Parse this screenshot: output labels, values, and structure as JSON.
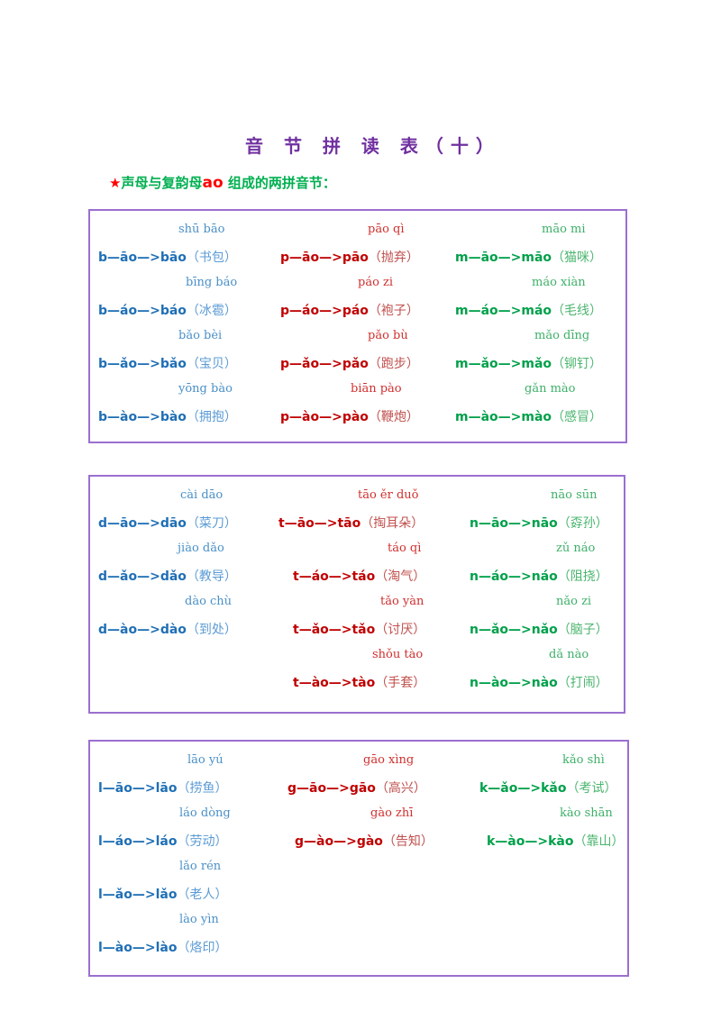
{
  "header": {
    "title": "音 节 拼 读 表（十）",
    "subtitle_star": "★",
    "subtitle_pre": "声母与复韵母",
    "subtitle_ao": "ao",
    "subtitle_post": " 组成的两拼音节："
  },
  "colors": {
    "title": "#7030a0",
    "border": "#9b6fd0",
    "blue": "#1f6fb5",
    "red": "#c00000",
    "green": "#00a04a"
  },
  "boxes": [
    {
      "columns": [
        {
          "color": "blue",
          "items": [
            {
              "pinyin": "shū bāo",
              "formula": "b—āo—>bāo",
              "word": "（书包）"
            },
            {
              "pinyin": "bīng báo",
              "formula": "b—áo—>báo",
              "word": "（冰雹）"
            },
            {
              "pinyin": "bǎo bèi",
              "formula": "b—ǎo—>bǎo",
              "word": "（宝贝）"
            },
            {
              "pinyin": "yōng bào",
              "formula": "b—ào—>bào",
              "word": "（拥抱）"
            }
          ]
        },
        {
          "color": "red",
          "items": [
            {
              "pinyin": "pāo qì",
              "formula": "p—āo—>pāo",
              "word": "（抛弃）"
            },
            {
              "pinyin": "páo zi",
              "formula": "p—áo—>páo",
              "word": "（袍子）"
            },
            {
              "pinyin": "pǎo bù",
              "formula": "p—ǎo—>pǎo",
              "word": "（跑步）"
            },
            {
              "pinyin": "biān pào",
              "formula": "p—ào—>pào",
              "word": "（鞭炮）"
            }
          ]
        },
        {
          "color": "green",
          "items": [
            {
              "pinyin": "māo mi",
              "formula": "m—āo—>māo",
              "word": "（猫咪）"
            },
            {
              "pinyin": "máo xiàn",
              "formula": "m—áo—>máo",
              "word": "（毛线）"
            },
            {
              "pinyin": "mǎo dīng",
              "formula": "m—ǎo—>mǎo",
              "word": "（铆钉）"
            },
            {
              "pinyin": "gǎn mào",
              "formula": "m—ào—>mào",
              "word": "（感冒）"
            }
          ]
        }
      ]
    },
    {
      "columns": [
        {
          "color": "blue",
          "items": [
            {
              "pinyin": "cài dāo",
              "formula": "d—āo—>dāo",
              "word": "（菜刀）"
            },
            {
              "pinyin": "jiào dǎo",
              "formula": "d—ǎo—>dǎo",
              "word": "（教导）"
            },
            {
              "pinyin": "dào chù",
              "formula": "d—ào—>dào",
              "word": "（到处）"
            }
          ]
        },
        {
          "color": "red",
          "items": [
            {
              "pinyin": "tāo ěr duǒ",
              "formula": "t—āo—>tāo",
              "word": "（掏耳朵）"
            },
            {
              "pinyin": "táo qì",
              "formula": "t—áo—>táo",
              "word": "（淘气）"
            },
            {
              "pinyin": "tǎo yàn",
              "formula": "t—ǎo—>tǎo",
              "word": "（讨厌）"
            },
            {
              "pinyin": "shǒu tào",
              "formula": "t—ào—>tào",
              "word": "（手套）"
            }
          ]
        },
        {
          "color": "green",
          "items": [
            {
              "pinyin": "nāo sūn",
              "formula": "n—āo—>nāo",
              "word": "（孬孙）"
            },
            {
              "pinyin": "zǔ náo",
              "formula": "n—áo—>náo",
              "word": "（阻挠）"
            },
            {
              "pinyin": "nǎo zi",
              "formula": "n—ǎo—>nǎo",
              "word": "（脑子）"
            },
            {
              "pinyin": "dǎ nào",
              "formula": "n—ào—>nào",
              "word": "（打闹）"
            }
          ]
        }
      ]
    },
    {
      "columns": [
        {
          "color": "blue",
          "items": [
            {
              "pinyin": "lāo yú",
              "formula": "l—āo—>lāo",
              "word": "（捞鱼）"
            },
            {
              "pinyin": "láo dòng",
              "formula": "l—áo—>láo",
              "word": "（劳动）"
            },
            {
              "pinyin": "lǎo rén",
              "formula": "l—ǎo—>lǎo",
              "word": "（老人）"
            },
            {
              "pinyin": "lào yìn",
              "formula": "l—ào—>lào",
              "word": "（烙印）"
            }
          ]
        },
        {
          "color": "red",
          "items": [
            {
              "pinyin": "gāo xìng",
              "formula": "g—āo—>gāo",
              "word": "（高兴）"
            },
            {
              "pinyin": "gào zhī",
              "formula": "g—ào—>gào",
              "word": "（告知）"
            }
          ]
        },
        {
          "color": "green",
          "items": [
            {
              "pinyin": "kǎo shì",
              "formula": "k—ǎo—>kǎo",
              "word": "（考试）"
            },
            {
              "pinyin": "kào shān",
              "formula": "k—ào—>kào",
              "word": "（靠山）"
            }
          ]
        }
      ]
    }
  ]
}
